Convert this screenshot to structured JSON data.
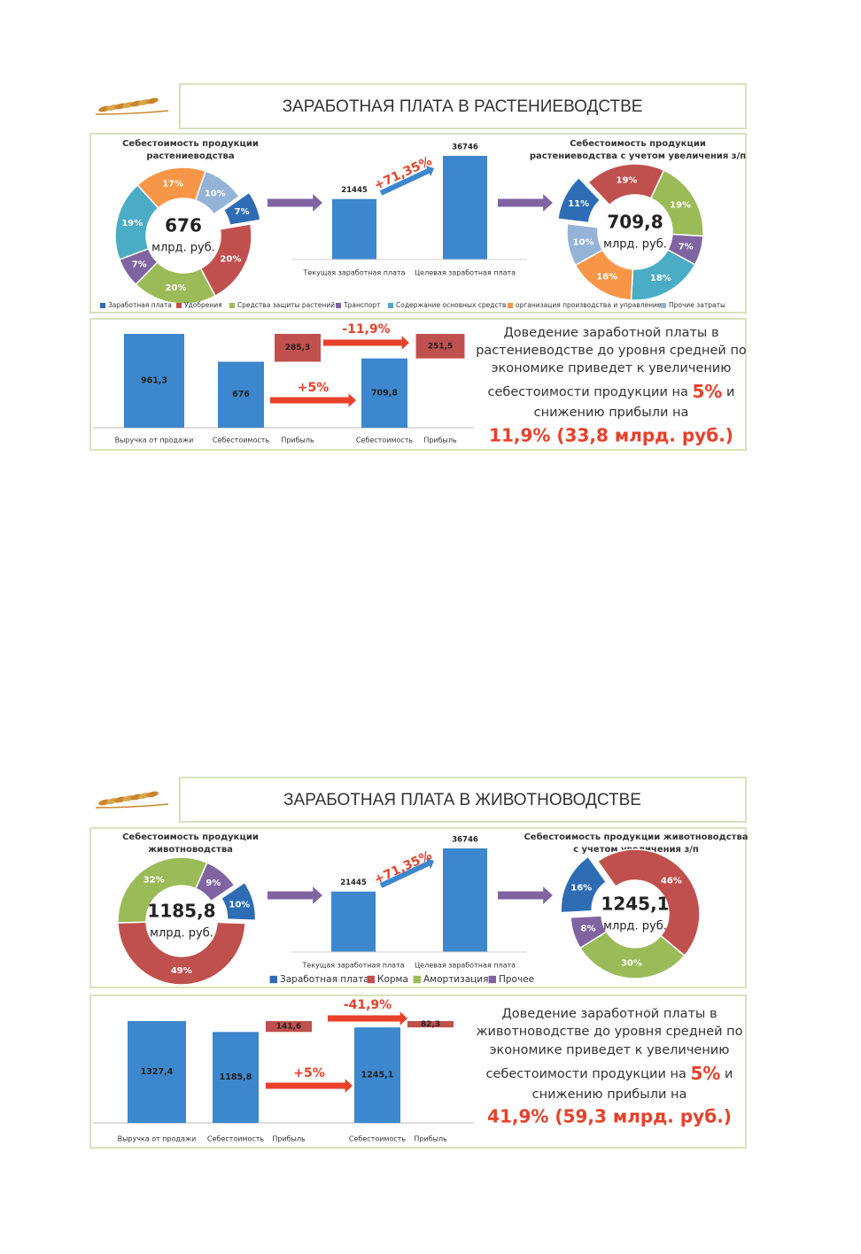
{
  "slides": [
    {
      "title": "ЗАРАБОТНАЯ ПЛАТА В РАСТЕНИЕВОДСТВЕ",
      "conclusion": {
        "lines": [
          "Доведение заработной платы в",
          "растениеводстве до уровня средней по",
          "экономике приведет к увеличению"
        ],
        "line4_start": "себестоимости продукции на ",
        "highlight1": "5%",
        "line4_end": " и",
        "line5": "снижению прибыли на",
        "highlight2": "11,9% (33,8 млрд. руб.)"
      }
    },
    {
      "title": "ЗАРАБОТНАЯ ПЛАТА В ЖИВОТНОВОДСТВЕ",
      "conclusion": {
        "lines": [
          "Доведение заработной платы в",
          "животноводстве до уровня средней по",
          "экономике приведет к увеличению"
        ],
        "line4_start": "себестоимости продукции на ",
        "highlight1": "5%",
        "line4_end": " и",
        "line5": "снижению прибыли на",
        "highlight2": "41,9% (59,3 млрд. руб.)"
      }
    }
  ],
  "chart_data": [
    {
      "type": "pie",
      "title": [
        "Себестоимость продукции",
        "растениеводства"
      ],
      "center_label": "676",
      "center_sublabel": "млрд. руб.",
      "categories": [
        "Заработная плата",
        "Удобрения",
        "Средства защиты растений",
        "Транспорт",
        "Содержание основных средств",
        "организация производства и управление",
        "Прочие затраты"
      ],
      "values": [
        7,
        20,
        20,
        7,
        19,
        17,
        10
      ],
      "value_labels": [
        "7%",
        "20%",
        "20%",
        "7%",
        "19%",
        "17%",
        "10%"
      ],
      "colors": [
        "#2e6db4",
        "#c0504d",
        "#9bbb59",
        "#8064a2",
        "#4bacc6",
        "#f79646",
        "#95b3d7"
      ],
      "explode_index": 0
    },
    {
      "type": "bar",
      "categories": [
        "Текущая заработная плата",
        "Целевая заработная плата"
      ],
      "values": [
        21445,
        36746
      ],
      "color": "#3c87cd",
      "annotation": "+71,35%"
    },
    {
      "type": "pie",
      "title": [
        "Себестоимость продукции",
        "растениеводства с учетом увеличения з/п"
      ],
      "center_label": "709,8",
      "center_sublabel": "млрд. руб.",
      "values": [
        11,
        19,
        19,
        7,
        18,
        16,
        10
      ],
      "value_labels": [
        "11%",
        "19%",
        "19%",
        "7%",
        "18%",
        "16%",
        "10%"
      ],
      "colors": [
        "#2e6db4",
        "#c0504d",
        "#9bbb59",
        "#8064a2",
        "#4bacc6",
        "#f79646",
        "#95b3d7"
      ],
      "explode_index": 0
    },
    {
      "type": "waterfall",
      "categories": [
        "Выручка от продажи",
        "Себестоимость",
        "Прибыль",
        "Себестоимость",
        "Прибыль"
      ],
      "values": [
        961.3,
        676,
        285.3,
        709.8,
        251.5
      ],
      "value_labels": [
        "961,3",
        "676",
        "285,3",
        "709,8",
        "251,5"
      ],
      "measure": [
        "absolute",
        "absolute",
        "relative",
        "absolute",
        "relative"
      ],
      "color": "#3c87cd",
      "delta_color": "#c0504d",
      "annotations": [
        "-11,9%",
        "+5%"
      ]
    },
    {
      "type": "pie",
      "title": [
        "Себестоимость продукции",
        "животноводства"
      ],
      "center_label": "1185,8",
      "center_sublabel": "млрд. руб.",
      "categories": [
        "Заработная плата",
        "Корма",
        "Амортизация",
        "Прочее"
      ],
      "values": [
        10,
        49,
        32,
        9
      ],
      "value_labels": [
        "10%",
        "49%",
        "32%",
        "9%"
      ],
      "colors": [
        "#2e6db4",
        "#c0504d",
        "#9bbb59",
        "#8064a2"
      ],
      "explode_index": 0
    },
    {
      "type": "bar",
      "categories": [
        "Текущая заработная плата",
        "Целевая заработная плата"
      ],
      "values": [
        21445,
        36746
      ],
      "color": "#3c87cd",
      "annotation": "+71,35%"
    },
    {
      "type": "pie",
      "title": [
        "Себестоимость продукции животноводства",
        "с учетом увеличения з/п"
      ],
      "center_label": "1245,1",
      "center_sublabel": "млрд. руб.",
      "values": [
        16,
        46,
        30,
        8
      ],
      "value_labels": [
        "16%",
        "46%",
        "30%",
        "8%"
      ],
      "colors": [
        "#2e6db4",
        "#c0504d",
        "#9bbb59",
        "#8064a2"
      ],
      "explode_index": 0
    },
    {
      "type": "waterfall",
      "categories": [
        "Выручка от продажи",
        "Себестоимость",
        "Прибыль",
        "Себестоимость",
        "Прибыль"
      ],
      "values": [
        1327.4,
        1185.8,
        141.6,
        1245.1,
        82.3
      ],
      "value_labels": [
        "1327,4",
        "1185,8",
        "141,6",
        "1245,1",
        "82,3"
      ],
      "measure": [
        "absolute",
        "absolute",
        "relative",
        "absolute",
        "relative"
      ],
      "color": "#3c87cd",
      "delta_color": "#c0504d",
      "annotations": [
        "-41,9%",
        "+5%"
      ]
    }
  ]
}
